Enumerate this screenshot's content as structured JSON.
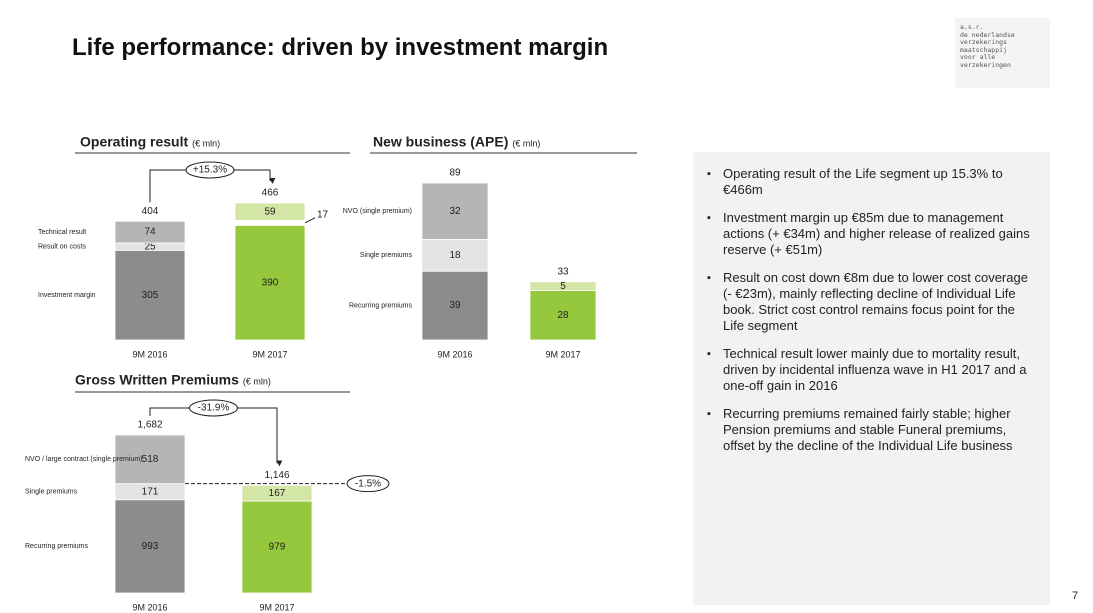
{
  "title": "Life performance: driven by investment margin",
  "logo": [
    "a.s.r.",
    "de nederlandse",
    "verzekerings",
    "maatschappij",
    "voor alle",
    "verzekeringen"
  ],
  "page_number": "7",
  "bullets": [
    "Operating result of the Life segment up 15.3% to €466m",
    "Investment margin up €85m due to management actions (+ €34m) and higher release of realized gains reserve (+ €51m)",
    "Result on cost down €8m due to lower cost coverage (- €23m), mainly reflecting decline of Individual Life book. Strict cost control remains focus point for the Life segment",
    "Technical result lower mainly due to mortality result, driven by incidental influenza wave in H1 2017 and a one-off gain in 2016",
    "Recurring premiums remained fairly stable; higher Pension premiums and stable Funeral premiums, offset by the decline of the Individual Life business"
  ],
  "chart_data": [
    {
      "type": "stacked_bar",
      "title": "Operating result",
      "unit": "(€ mln)",
      "categories": [
        "9M 2016",
        "9M 2017"
      ],
      "series": [
        {
          "name": "Investment margin",
          "colors": [
            "#8c8c8c",
            "#95c83c"
          ],
          "values": [
            305,
            390
          ]
        },
        {
          "name": "Result on costs",
          "colors": [
            "#e3e3e3",
            "#ffffff"
          ],
          "values": [
            25,
            17
          ]
        },
        {
          "name": "Technical result",
          "colors": [
            "#b5b5b5",
            "#d3e6a5"
          ],
          "values": [
            74,
            59
          ]
        }
      ],
      "totals": [
        404,
        466
      ],
      "annotations": [
        "+15.3%"
      ]
    },
    {
      "type": "stacked_bar",
      "title": "New business (APE)",
      "unit": "(€ mln)",
      "categories": [
        "9M 2016",
        "9M 2017"
      ],
      "series": [
        {
          "name": "Recurring premiums",
          "colors": [
            "#8c8c8c",
            "#95c83c"
          ],
          "values": [
            39,
            28
          ]
        },
        {
          "name": "Single premiums",
          "colors": [
            "#e3e3e3",
            "#e3e3e3"
          ],
          "values": [
            18,
            null
          ]
        },
        {
          "name": "NVO (single premium)",
          "colors": [
            "#b5b5b5",
            "#d3e6a5"
          ],
          "values": [
            32,
            5
          ]
        }
      ],
      "totals": [
        89,
        33
      ]
    },
    {
      "type": "stacked_bar",
      "title": "Gross Written Premiums",
      "unit": "(€ mln)",
      "categories": [
        "9M 2016",
        "9M 2017"
      ],
      "series": [
        {
          "name": "Recurring premiums",
          "colors": [
            "#8c8c8c",
            "#95c83c"
          ],
          "values": [
            993,
            979
          ]
        },
        {
          "name": "Single premiums",
          "colors": [
            "#e3e3e3",
            "#d3e6a5"
          ],
          "values": [
            171,
            167
          ]
        },
        {
          "name": "NVO / large contract (single premium)",
          "colors": [
            "#b5b5b5",
            "#b5b5b5"
          ],
          "values": [
            518,
            null
          ]
        }
      ],
      "totals": [
        1682,
        1146
      ],
      "total_labels": [
        "1,682",
        "1,146"
      ],
      "annotations": [
        "-31.9%",
        "-1.5%"
      ]
    }
  ]
}
